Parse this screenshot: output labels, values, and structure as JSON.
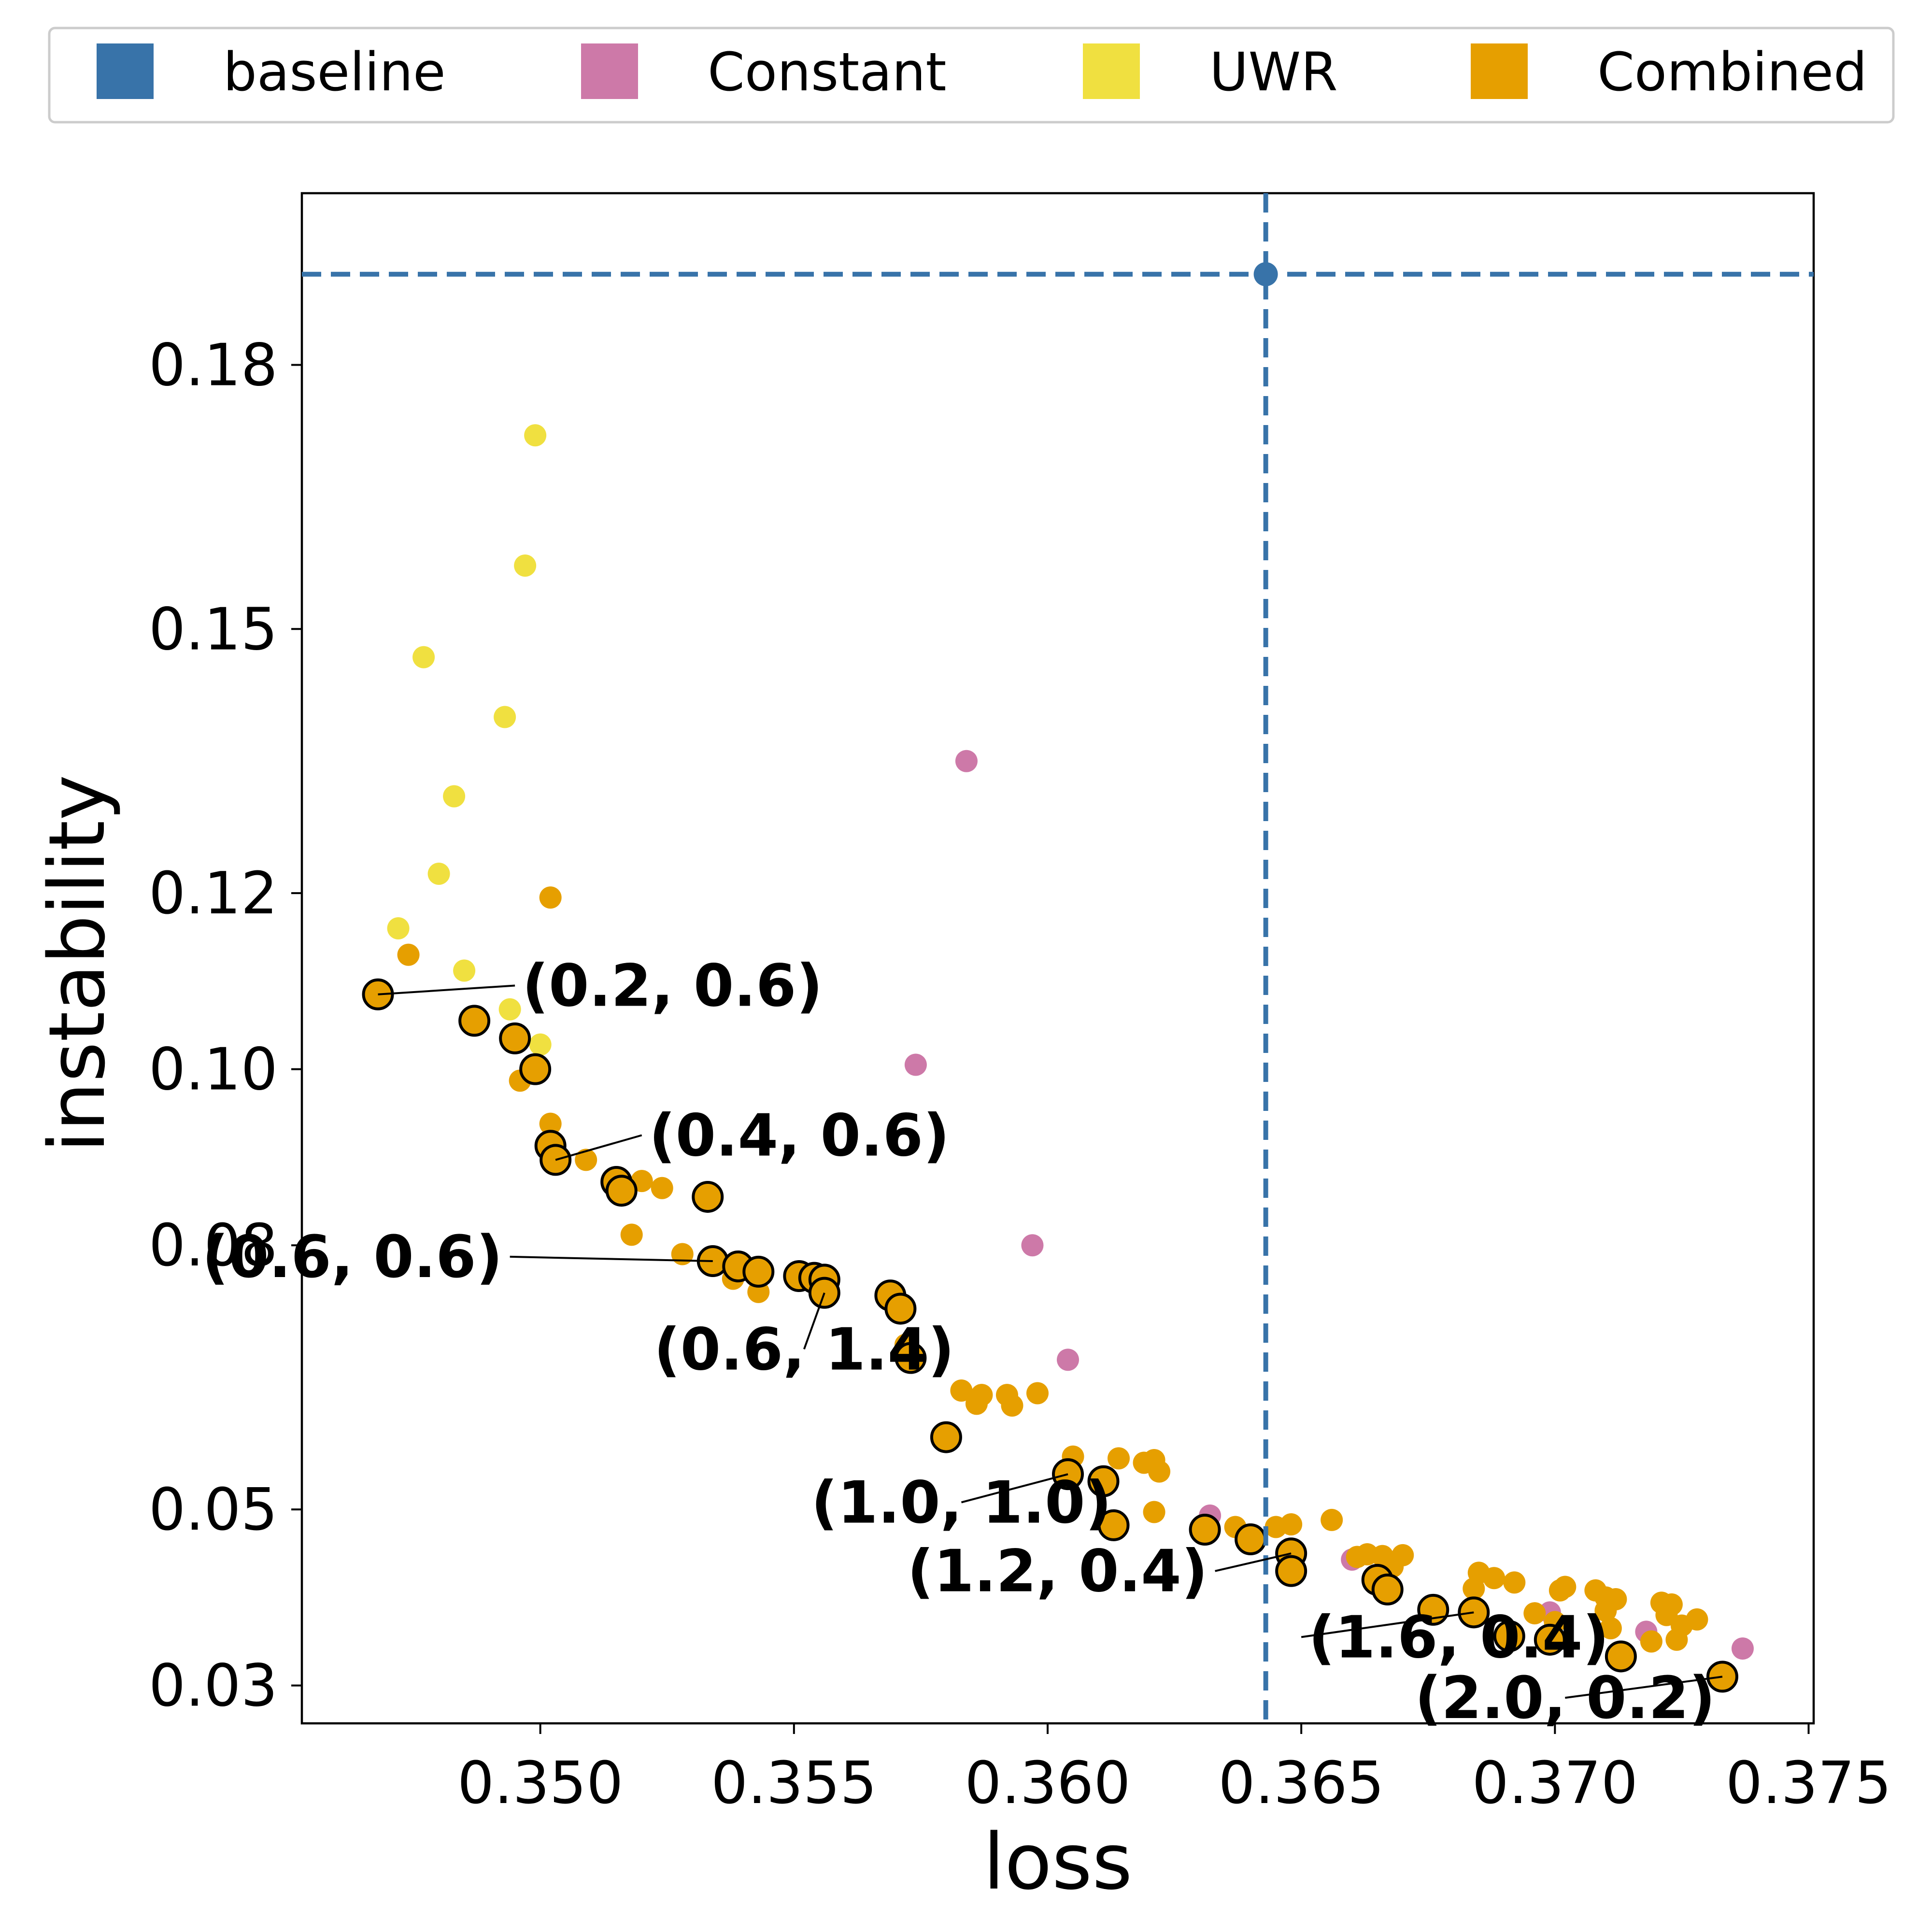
{
  "chart_data": {
    "type": "scatter",
    "xlabel": "loss",
    "ylabel": "instability",
    "xlim": [
      0.3453,
      0.3751
    ],
    "ylim": [
      0.0257,
      0.1995
    ],
    "xticks": [
      0.35,
      0.355,
      0.36,
      0.365,
      0.37,
      0.375
    ],
    "xtick_labels": [
      "0.350",
      "0.355",
      "0.360",
      "0.365",
      "0.370",
      "0.375"
    ],
    "yticks": [
      0.03,
      0.05,
      0.08,
      0.1,
      0.12,
      0.15,
      0.18
    ],
    "ytick_labels": [
      "0.03",
      "0.05",
      "0.08",
      "0.10",
      "0.12",
      "0.15",
      "0.18"
    ],
    "grid": false,
    "legend_position": "top",
    "legend": [
      {
        "name": "baseline",
        "color": "#3873a9"
      },
      {
        "name": "Constant",
        "color": "#cd79a8"
      },
      {
        "name": "UWR",
        "color": "#f0e040"
      },
      {
        "name": "Combined",
        "color": "#e69f00"
      }
    ],
    "baseline": {
      "loss": 0.3643,
      "instability": 0.1903,
      "color": "#3873a9",
      "line_style": "dashed"
    },
    "series": [
      {
        "name": "Constant",
        "color": "#cd79a8",
        "points": [
          [
            0.3584,
            0.135
          ],
          [
            0.3574,
            0.1005
          ],
          [
            0.3597,
            0.08
          ],
          [
            0.3604,
            0.067
          ],
          [
            0.3632,
            0.0493
          ],
          [
            0.366,
            0.0443
          ],
          [
            0.3699,
            0.0383
          ],
          [
            0.3718,
            0.0361
          ],
          [
            0.3737,
            0.0342
          ]
        ]
      },
      {
        "name": "UWR",
        "color": "#f0e040",
        "points": [
          [
            0.3499,
            0.172
          ],
          [
            0.3497,
            0.1572
          ],
          [
            0.3477,
            0.1468
          ],
          [
            0.3493,
            0.14
          ],
          [
            0.3483,
            0.131
          ],
          [
            0.348,
            0.1222
          ],
          [
            0.3472,
            0.116
          ],
          [
            0.3485,
            0.1112
          ],
          [
            0.3494,
            0.1068
          ],
          [
            0.35,
            0.1028
          ]
        ]
      },
      {
        "name": "Combined",
        "color": "#e69f00",
        "points": [
          [
            0.3502,
            0.1195
          ],
          [
            0.3474,
            0.113
          ],
          [
            0.3496,
            0.0987
          ],
          [
            0.3502,
            0.0938
          ],
          [
            0.3509,
            0.0897
          ],
          [
            0.352,
            0.0873
          ],
          [
            0.3524,
            0.0865
          ],
          [
            0.3518,
            0.0812
          ],
          [
            0.3528,
            0.079
          ],
          [
            0.3538,
            0.0762
          ],
          [
            0.3543,
            0.0747
          ],
          [
            0.3572,
            0.0687
          ],
          [
            0.3583,
            0.0635
          ],
          [
            0.3587,
            0.063
          ],
          [
            0.3592,
            0.063
          ],
          [
            0.3598,
            0.0632
          ],
          [
            0.3586,
            0.062
          ],
          [
            0.3593,
            0.0618
          ],
          [
            0.3605,
            0.056
          ],
          [
            0.3614,
            0.0558
          ],
          [
            0.3619,
            0.0553
          ],
          [
            0.3621,
            0.0556
          ],
          [
            0.3622,
            0.0543
          ],
          [
            0.3621,
            0.0497
          ],
          [
            0.3637,
            0.048
          ],
          [
            0.3645,
            0.048
          ],
          [
            0.3648,
            0.0483
          ],
          [
            0.3656,
            0.0488
          ],
          [
            0.3661,
            0.0446
          ],
          [
            0.3663,
            0.0449
          ],
          [
            0.3666,
            0.0447
          ],
          [
            0.367,
            0.0448
          ],
          [
            0.3668,
            0.0435
          ],
          [
            0.3685,
            0.0428
          ],
          [
            0.3688,
            0.0422
          ],
          [
            0.3692,
            0.0417
          ],
          [
            0.3684,
            0.041
          ],
          [
            0.3696,
            0.0382
          ],
          [
            0.37,
            0.0372
          ],
          [
            0.3701,
            0.0408
          ],
          [
            0.3702,
            0.0412
          ],
          [
            0.3708,
            0.0408
          ],
          [
            0.371,
            0.04
          ],
          [
            0.3712,
            0.0398
          ],
          [
            0.371,
            0.0385
          ],
          [
            0.3711,
            0.0365
          ],
          [
            0.3719,
            0.035
          ],
          [
            0.3721,
            0.0394
          ],
          [
            0.3723,
            0.0392
          ],
          [
            0.3722,
            0.038
          ],
          [
            0.3725,
            0.0368
          ],
          [
            0.3728,
            0.0375
          ],
          [
            0.3724,
            0.0352
          ]
        ]
      },
      {
        "name": "Combined",
        "color": "#e69f00",
        "outlined": true,
        "points": [
          [
            0.3468,
            0.1085
          ],
          [
            0.3487,
            0.1055
          ],
          [
            0.3495,
            0.1035
          ],
          [
            0.3499,
            0.1
          ],
          [
            0.3502,
            0.0913
          ],
          [
            0.3503,
            0.0897
          ],
          [
            0.3515,
            0.0872
          ],
          [
            0.3516,
            0.0862
          ],
          [
            0.3533,
            0.0855
          ],
          [
            0.3534,
            0.0782
          ],
          [
            0.3539,
            0.0776
          ],
          [
            0.3543,
            0.077
          ],
          [
            0.3551,
            0.0765
          ],
          [
            0.3554,
            0.0763
          ],
          [
            0.3556,
            0.0761
          ],
          [
            0.3556,
            0.0746
          ],
          [
            0.3569,
            0.0743
          ],
          [
            0.3571,
            0.0728
          ],
          [
            0.3573,
            0.0672
          ],
          [
            0.358,
            0.0582
          ],
          [
            0.3604,
            0.054
          ],
          [
            0.3611,
            0.0532
          ],
          [
            0.3613,
            0.0482
          ],
          [
            0.3631,
            0.0477
          ],
          [
            0.364,
            0.0466
          ],
          [
            0.3648,
            0.045
          ],
          [
            0.3648,
            0.043
          ],
          [
            0.3665,
            0.042
          ],
          [
            0.3667,
            0.0409
          ],
          [
            0.3676,
            0.0386
          ],
          [
            0.3684,
            0.0383
          ],
          [
            0.3691,
            0.0356
          ],
          [
            0.3699,
            0.0352
          ],
          [
            0.3713,
            0.0333
          ],
          [
            0.3733,
            0.031
          ]
        ]
      }
    ],
    "annotations": [
      {
        "text": "(0.2, 0.6)",
        "point": [
          0.3468,
          0.1085
        ],
        "text_at": [
          0.3495,
          0.1095
        ],
        "anchor": "start"
      },
      {
        "text": "(0.4, 0.6)",
        "point": [
          0.3503,
          0.0897
        ],
        "text_at": [
          0.352,
          0.0925
        ],
        "anchor": "start"
      },
      {
        "text": "(0.6, 0.6)",
        "point": [
          0.3534,
          0.0782
        ],
        "text_at": [
          0.3494,
          0.0787
        ],
        "anchor": "end"
      },
      {
        "text": "(0.6, 1.4)",
        "point": [
          0.3556,
          0.0746
        ],
        "text_at": [
          0.3552,
          0.0682
        ],
        "anchor": "middle"
      },
      {
        "text": "(1.0, 1.0)",
        "point": [
          0.3604,
          0.054
        ],
        "text_at": [
          0.3583,
          0.0508
        ],
        "anchor": "middle"
      },
      {
        "text": "(1.2, 0.4)",
        "point": [
          0.3648,
          0.045
        ],
        "text_at": [
          0.3633,
          0.043
        ],
        "anchor": "end"
      },
      {
        "text": "(1.6, 0.4)",
        "point": [
          0.3684,
          0.0383
        ],
        "text_at": [
          0.365,
          0.0355
        ],
        "anchor": "start"
      },
      {
        "text": "(2.0, 0.2)",
        "point": [
          0.3733,
          0.031
        ],
        "text_at": [
          0.3702,
          0.0286
        ],
        "anchor": "middle"
      }
    ]
  }
}
